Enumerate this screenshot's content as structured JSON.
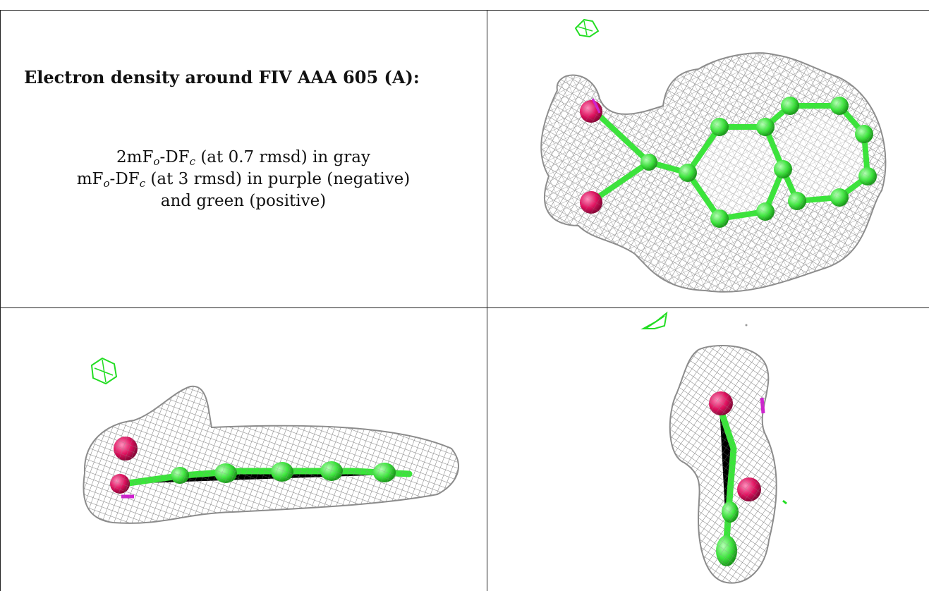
{
  "panel_text": {
    "heading": "Electron density around FIV AAA 605 (A):",
    "line1": {
      "prefix": "2mF",
      "sub1": "o",
      "mid": "-DF",
      "sub2": "c",
      "suffix": " (at 0.7 rmsd) in gray"
    },
    "line2": {
      "prefix": "mF",
      "sub1": "o",
      "mid": "-DF",
      "sub2": "c",
      "suffix": " (at 3 rmsd) in purple (negative)"
    },
    "line3": "and green (positive)"
  },
  "colors": {
    "mesh_gray": "#9a9a9a",
    "atom_green": "#39e639",
    "oxygen_red": "#e0115f",
    "negative_purple": "#d020d0",
    "positive_green": "#22dd22"
  },
  "views": {
    "top_right": "top view",
    "bottom_left": "side view",
    "bottom_right": "end view"
  }
}
